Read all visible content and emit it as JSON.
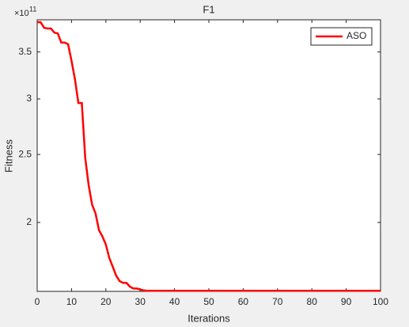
{
  "chart_data": {
    "type": "line",
    "title": "F1",
    "xlabel": "Iterations",
    "ylabel": "Fitness",
    "y_exponent_base": "×10",
    "y_exponent": "11",
    "x": [
      0,
      1,
      2,
      3,
      4,
      5,
      6,
      7,
      8,
      9,
      10,
      11,
      12,
      13,
      14,
      15,
      16,
      17,
      18,
      19,
      20,
      21,
      22,
      23,
      24,
      25,
      26,
      27,
      28,
      29,
      30,
      31,
      32,
      33,
      34,
      35,
      36,
      37,
      38,
      39,
      40,
      41,
      42,
      43,
      44,
      45,
      46,
      47,
      48,
      49,
      50,
      51,
      52,
      53,
      54,
      55,
      56,
      57,
      58,
      59,
      60,
      61,
      62,
      63,
      64,
      65,
      66,
      67,
      68,
      69,
      70,
      71,
      72,
      73,
      74,
      75,
      76,
      77,
      78,
      79,
      80,
      81,
      82,
      83,
      84,
      85,
      86,
      87,
      88,
      89,
      90,
      91,
      92,
      93,
      94,
      95,
      96,
      97,
      98,
      99,
      100
    ],
    "series": [
      {
        "name": "ASO",
        "color": "#ff0000",
        "values": [
          3.86,
          3.86,
          3.79,
          3.78,
          3.78,
          3.73,
          3.72,
          3.61,
          3.61,
          3.59,
          3.4,
          3.2,
          2.96,
          2.96,
          2.47,
          2.26,
          2.12,
          2.06,
          1.95,
          1.91,
          1.86,
          1.78,
          1.73,
          1.68,
          1.65,
          1.64,
          1.64,
          1.62,
          1.61,
          1.61,
          1.605,
          1.6,
          1.598,
          1.598,
          1.598,
          1.598,
          1.598,
          1.598,
          1.598,
          1.598,
          1.598,
          1.598,
          1.598,
          1.598,
          1.598,
          1.598,
          1.598,
          1.598,
          1.598,
          1.598,
          1.598,
          1.598,
          1.598,
          1.598,
          1.598,
          1.598,
          1.598,
          1.598,
          1.598,
          1.598,
          1.598,
          1.598,
          1.598,
          1.598,
          1.598,
          1.598,
          1.598,
          1.598,
          1.598,
          1.598,
          1.598,
          1.598,
          1.598,
          1.598,
          1.598,
          1.598,
          1.598,
          1.598,
          1.598,
          1.598,
          1.598,
          1.598,
          1.598,
          1.598,
          1.598,
          1.598,
          1.598,
          1.598,
          1.598,
          1.598,
          1.598,
          1.598,
          1.598,
          1.598,
          1.598,
          1.598,
          1.598,
          1.598,
          1.598,
          1.598,
          1.598
        ]
      }
    ],
    "xlim": [
      0,
      100
    ],
    "xticks": [
      0,
      10,
      20,
      30,
      40,
      50,
      60,
      70,
      80,
      90,
      100
    ],
    "ylim": [
      1.595,
      3.89
    ],
    "yticks": [
      2,
      2.5,
      3,
      3.5
    ],
    "y_log": true,
    "grid": false,
    "legend": "northeast"
  }
}
